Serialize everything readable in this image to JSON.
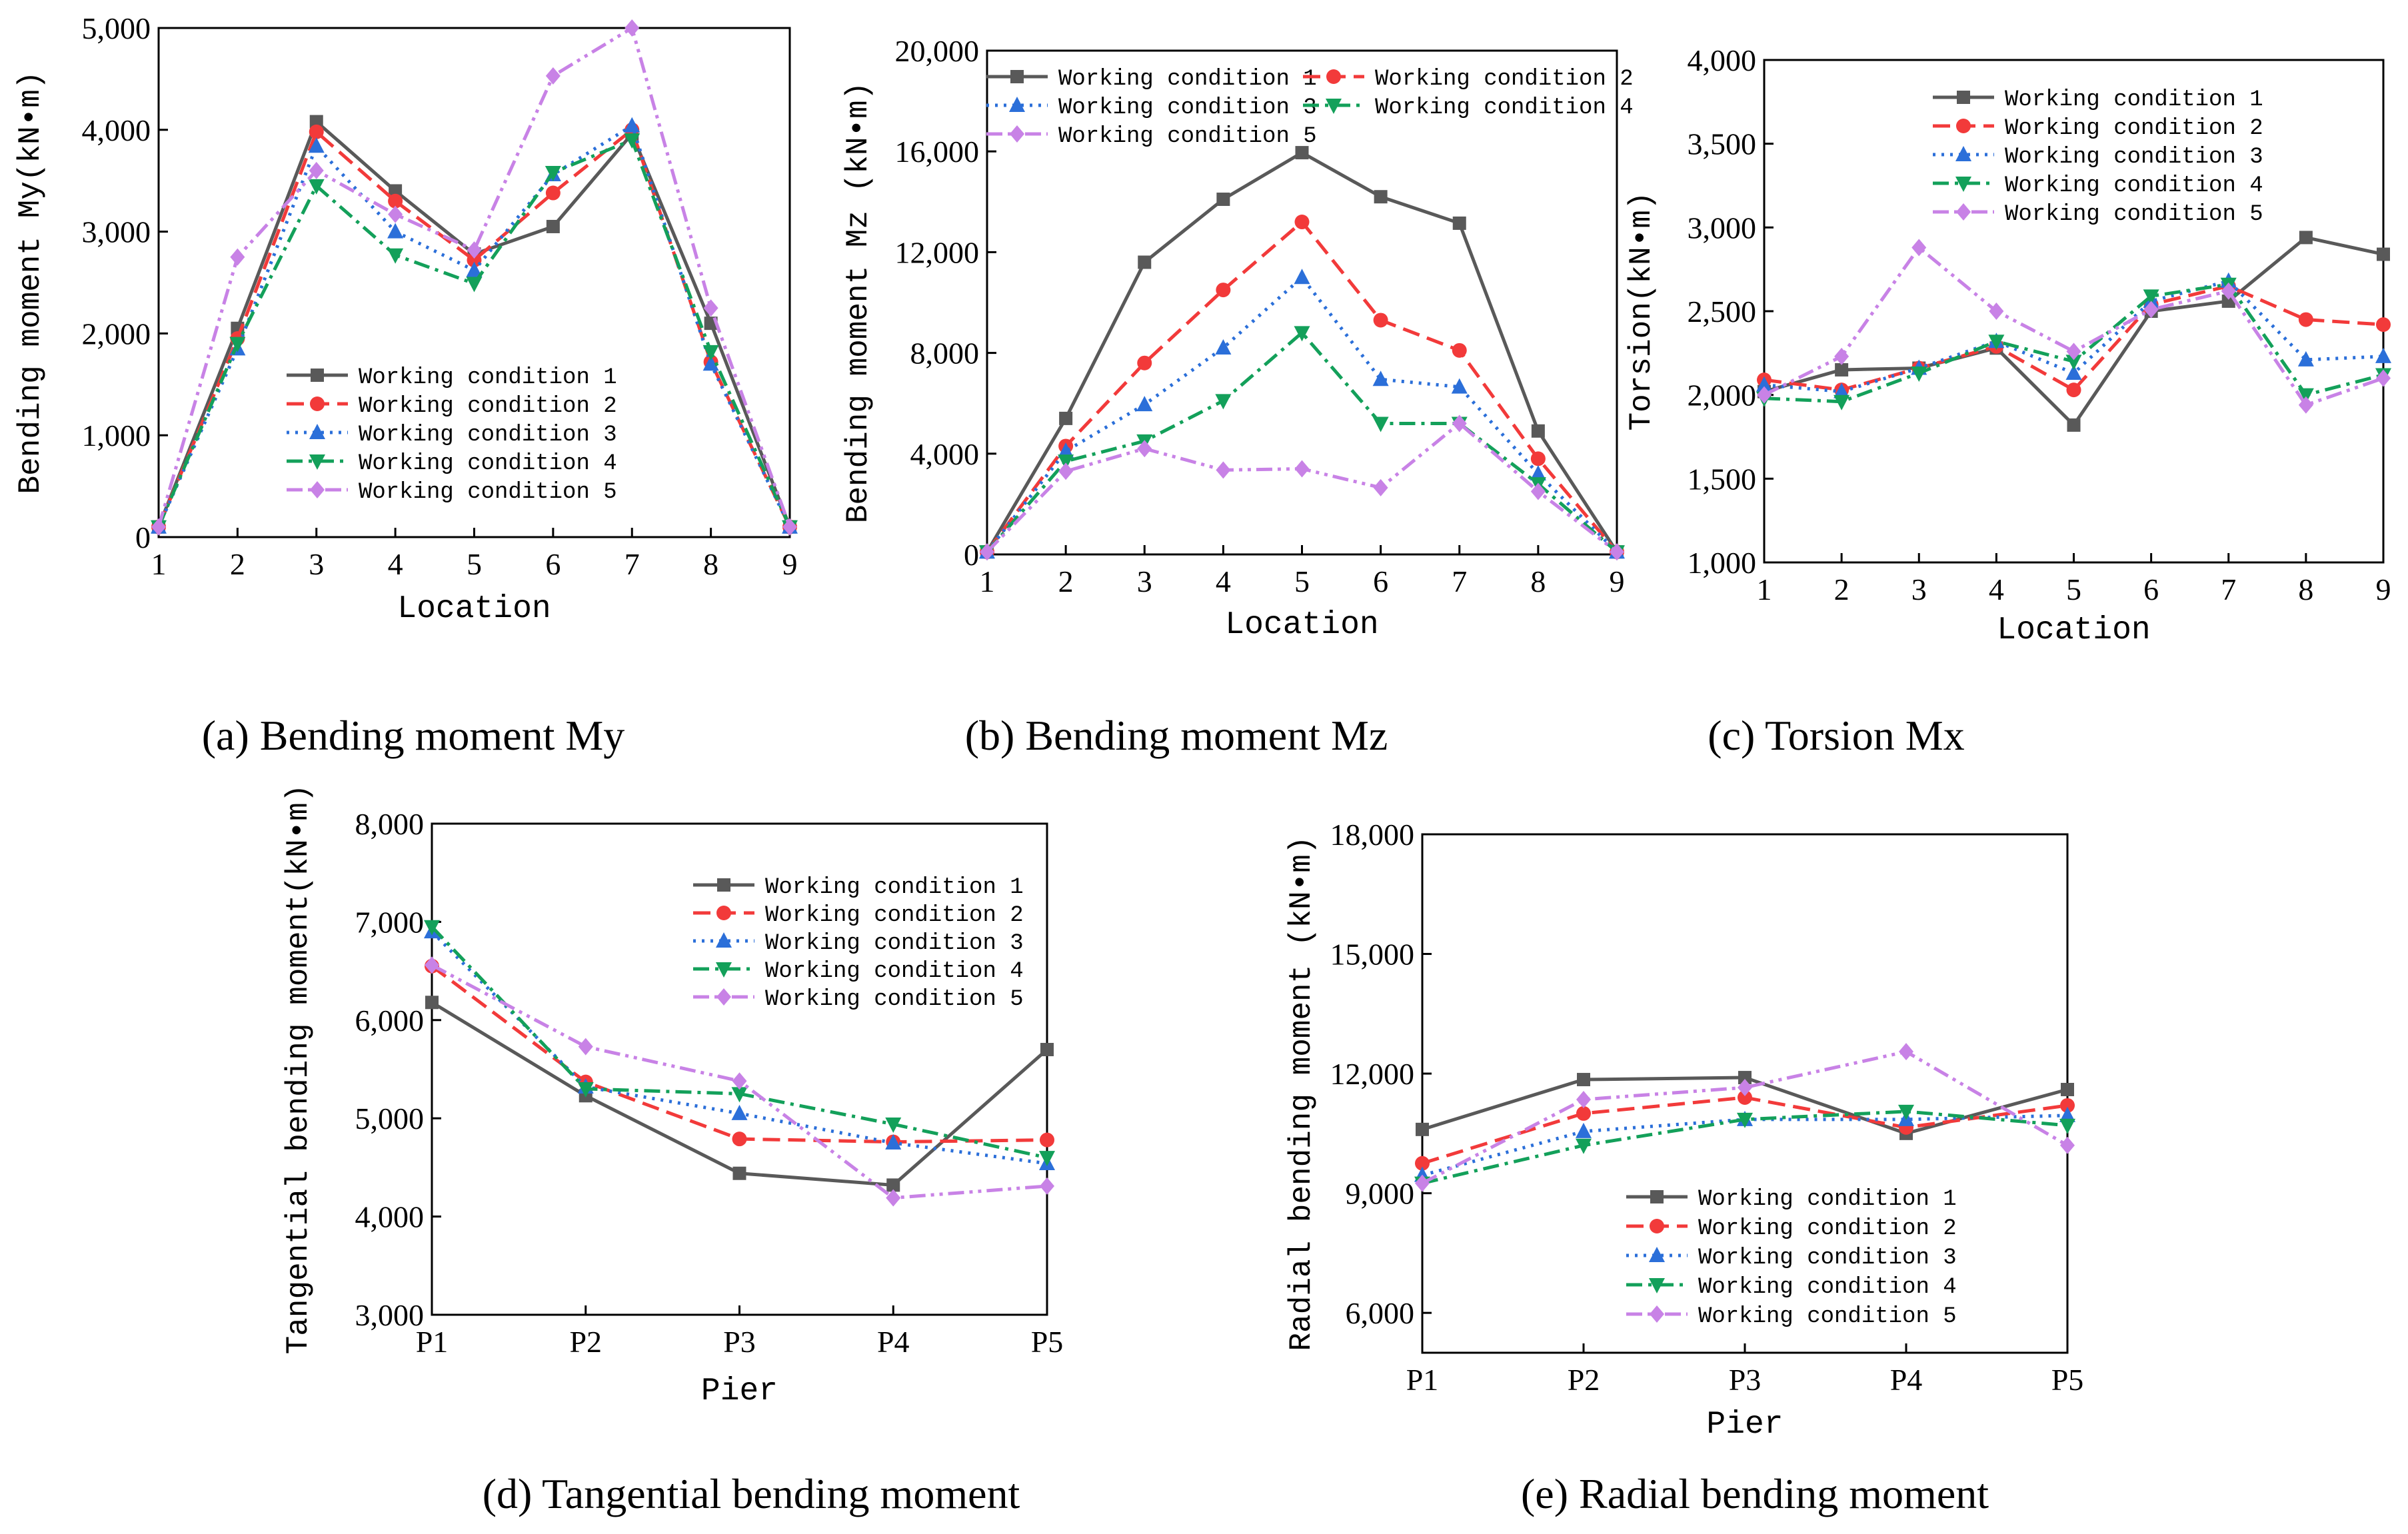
{
  "series_style": [
    {
      "color": "#595959",
      "dash": "",
      "marker": "square"
    },
    {
      "color": "#f23a3a",
      "dash": "dashed",
      "marker": "circle"
    },
    {
      "color": "#2b6fd9",
      "dash": "dotted",
      "marker": "triangle-up"
    },
    {
      "color": "#13a05a",
      "dash": "dashdot",
      "marker": "triangle-down"
    },
    {
      "color": "#c882e6",
      "dash": "dashdotdot",
      "marker": "diamond"
    }
  ],
  "chart_data": [
    {
      "type": "line",
      "caption": "(a) Bending moment My",
      "xlabel": "Location",
      "ylabel": "Bending moment My(kN•m)",
      "categories": [
        "1",
        "2",
        "3",
        "4",
        "5",
        "6",
        "7",
        "8",
        "9"
      ],
      "ylim": [
        0,
        5000
      ],
      "yticks": [
        "0",
        "1,000",
        "2,000",
        "3,000",
        "4,000",
        "5,000"
      ],
      "legend_placement": "lower-center",
      "series": [
        {
          "name": "Working condition 1",
          "values": [
            100,
            2050,
            4080,
            3400,
            2780,
            3050,
            3960,
            2100,
            100
          ]
        },
        {
          "name": "Working condition 2",
          "values": [
            100,
            1950,
            3980,
            3300,
            2720,
            3380,
            4000,
            1720,
            100
          ]
        },
        {
          "name": "Working condition 3",
          "values": [
            100,
            1850,
            3840,
            3000,
            2620,
            3560,
            4040,
            1700,
            100
          ]
        },
        {
          "name": "Working condition 4",
          "values": [
            100,
            1900,
            3450,
            2770,
            2490,
            3580,
            3900,
            1820,
            100
          ]
        },
        {
          "name": "Working condition 5",
          "values": [
            100,
            2750,
            3600,
            3170,
            2820,
            4530,
            5000,
            2250,
            100
          ]
        }
      ]
    },
    {
      "type": "line",
      "caption": "(b) Bending moment Mz",
      "xlabel": "Location",
      "ylabel": "Bending moment Mz (kN•m)",
      "categories": [
        "1",
        "2",
        "3",
        "4",
        "5",
        "6",
        "7",
        "8",
        "9"
      ],
      "ylim": [
        0,
        20000
      ],
      "yticks": [
        "0",
        "4,000",
        "8,000",
        "12,000",
        "16,000",
        "20,000"
      ],
      "legend_placement": "top, two columns",
      "series": [
        {
          "name": "Working condition 1",
          "values": [
            100,
            5400,
            11600,
            14100,
            15950,
            14200,
            13150,
            4900,
            100
          ]
        },
        {
          "name": "Working condition 2",
          "values": [
            100,
            4300,
            7600,
            10500,
            13200,
            9300,
            8100,
            3800,
            100
          ]
        },
        {
          "name": "Working condition 3",
          "values": [
            100,
            4100,
            5950,
            8200,
            11000,
            6950,
            6650,
            3200,
            100
          ]
        },
        {
          "name": "Working condition 4",
          "values": [
            100,
            3700,
            4500,
            6100,
            8800,
            5200,
            5200,
            2800,
            100
          ]
        },
        {
          "name": "Working condition 5",
          "values": [
            100,
            3300,
            4200,
            3350,
            3400,
            2650,
            5200,
            2500,
            100
          ]
        }
      ]
    },
    {
      "type": "line",
      "caption": "(c) Torsion Mx",
      "xlabel": "Location",
      "ylabel": "Torsion(kN•m)",
      "categories": [
        "1",
        "2",
        "3",
        "4",
        "5",
        "6",
        "7",
        "8",
        "9"
      ],
      "ylim": [
        1000,
        4000
      ],
      "yticks": [
        "1,000",
        "1,500",
        "2,000",
        "2,500",
        "3,000",
        "3,500",
        "4,000"
      ],
      "legend_placement": "top",
      "series": [
        {
          "name": "Working condition 1",
          "values": [
            2020,
            2150,
            2160,
            2280,
            1820,
            2500,
            2560,
            2940,
            2840
          ]
        },
        {
          "name": "Working condition 2",
          "values": [
            2090,
            2030,
            2160,
            2290,
            2030,
            2540,
            2650,
            2450,
            2420
          ]
        },
        {
          "name": "Working condition 3",
          "values": [
            2060,
            2020,
            2160,
            2320,
            2130,
            2560,
            2680,
            2210,
            2230
          ]
        },
        {
          "name": "Working condition 4",
          "values": [
            1980,
            1960,
            2130,
            2320,
            2200,
            2590,
            2660,
            2000,
            2120
          ]
        },
        {
          "name": "Working condition 5",
          "values": [
            2000,
            2230,
            2880,
            2500,
            2260,
            2510,
            2620,
            1940,
            2100
          ]
        }
      ]
    },
    {
      "type": "line",
      "caption": "(d) Tangential bending moment",
      "xlabel": "Pier",
      "ylabel": "Tangential bending moment(kN•m)",
      "categories": [
        "P1",
        "P2",
        "P3",
        "P4",
        "P5"
      ],
      "ylim": [
        3000,
        8000
      ],
      "yticks": [
        "3,000",
        "4,000",
        "5,000",
        "6,000",
        "7,000",
        "8,000"
      ],
      "legend_placement": "top-right",
      "series": [
        {
          "name": "Working condition 1",
          "values": [
            6180,
            5230,
            4440,
            4320,
            5700
          ]
        },
        {
          "name": "Working condition 2",
          "values": [
            6550,
            5370,
            4790,
            4760,
            4780
          ]
        },
        {
          "name": "Working condition 3",
          "values": [
            6900,
            5320,
            5050,
            4750,
            4540
          ]
        },
        {
          "name": "Working condition 4",
          "values": [
            6950,
            5300,
            5250,
            4940,
            4600
          ]
        },
        {
          "name": "Working condition 5",
          "values": [
            6560,
            5730,
            5380,
            4190,
            4310
          ]
        }
      ]
    },
    {
      "type": "line",
      "caption": "(e) Radial bending moment",
      "xlabel": "Pier",
      "ylabel": "Radial bending moment (kN•m)",
      "categories": [
        "P1",
        "P2",
        "P3",
        "P4",
        "P5"
      ],
      "ylim": [
        5000,
        18000
      ],
      "yticks": [
        "6,000",
        "9,000",
        "12,000",
        "15,000",
        "18,000"
      ],
      "ytick_values": [
        6000,
        9000,
        12000,
        15000,
        18000
      ],
      "legend_placement": "bottom-center",
      "series": [
        {
          "name": "Working condition 1",
          "values": [
            10600,
            11850,
            11900,
            10500,
            11600
          ]
        },
        {
          "name": "Working condition 2",
          "values": [
            9750,
            11000,
            11400,
            10650,
            11200
          ]
        },
        {
          "name": "Working condition 3",
          "values": [
            9450,
            10550,
            10850,
            10850,
            10950
          ]
        },
        {
          "name": "Working condition 4",
          "values": [
            9250,
            10200,
            10850,
            11050,
            10700
          ]
        },
        {
          "name": "Working condition 5",
          "values": [
            9250,
            11350,
            11650,
            12550,
            10200
          ]
        }
      ]
    }
  ]
}
